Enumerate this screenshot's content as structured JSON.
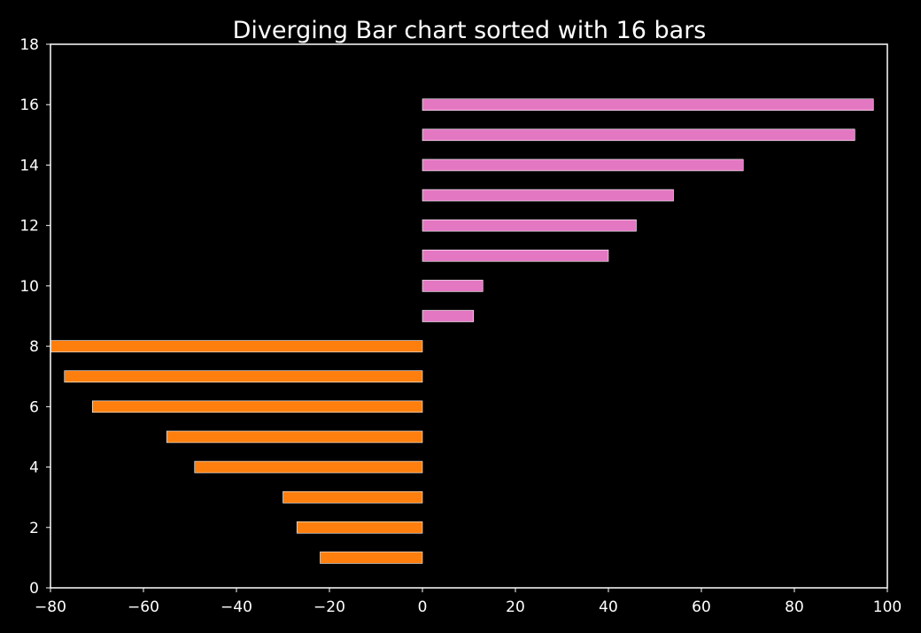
{
  "chart_data": {
    "type": "bar",
    "orientation": "horizontal",
    "title": "Diverging Bar chart sorted with 16 bars",
    "xlabel": "",
    "ylabel": "",
    "xlim": [
      -80,
      100
    ],
    "ylim": [
      0,
      18
    ],
    "x_ticks": [
      -80,
      -60,
      -40,
      -20,
      0,
      20,
      40,
      60,
      80,
      100
    ],
    "y_ticks": [
      0,
      2,
      4,
      6,
      8,
      10,
      12,
      14,
      16,
      18
    ],
    "grid": false,
    "bars": [
      {
        "y": 1,
        "value": -22
      },
      {
        "y": 2,
        "value": -27
      },
      {
        "y": 3,
        "value": -30
      },
      {
        "y": 4,
        "value": -49
      },
      {
        "y": 5,
        "value": -55
      },
      {
        "y": 6,
        "value": -71
      },
      {
        "y": 7,
        "value": -77
      },
      {
        "y": 8,
        "value": -80
      },
      {
        "y": 9,
        "value": 11
      },
      {
        "y": 10,
        "value": 13
      },
      {
        "y": 11,
        "value": 40
      },
      {
        "y": 12,
        "value": 46
      },
      {
        "y": 13,
        "value": 54
      },
      {
        "y": 14,
        "value": 69
      },
      {
        "y": 15,
        "value": 93
      },
      {
        "y": 16,
        "value": 97
      }
    ],
    "colors": {
      "negative": "#ff7f0e",
      "positive": "#e377c2",
      "background": "#000000",
      "axis": "#ffffff",
      "text": "#ffffff"
    }
  }
}
